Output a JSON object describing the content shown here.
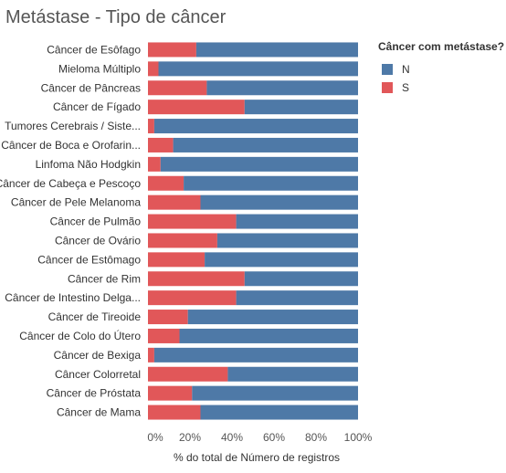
{
  "chart_data": {
    "type": "bar",
    "orientation": "horizontal",
    "stacked": "percent",
    "title": "Metástase - Tipo de câncer",
    "xlabel": "% do total de Número de registros",
    "ylabel": "",
    "xlim": [
      0,
      100
    ],
    "x_ticks": [
      "0%",
      "20%",
      "40%",
      "60%",
      "80%",
      "100%"
    ],
    "categories": [
      "Câncer de Esôfago",
      "Mieloma Múltiplo",
      "Câncer de Pâncreas",
      "Câncer de Fígado",
      "Tumores Cerebrais / Siste...",
      "Câncer de Boca e Orofarin...",
      "Linfoma Não Hodgkin",
      "Câncer de Cabeça e Pescoço",
      "Câncer de Pele Melanoma",
      "Câncer de Pulmão",
      "Câncer de Ovário",
      "Câncer de Estômago",
      "Câncer de Rim",
      "Câncer de Intestino Delga...",
      "Câncer de Tireoide",
      "Câncer de Colo do Útero",
      "Câncer de Bexiga",
      "Câncer Colorretal",
      "Câncer de Próstata",
      "Câncer de Mama"
    ],
    "series": [
      {
        "name": "S",
        "color": "#e15759",
        "values": [
          23,
          5,
          28,
          46,
          3,
          12,
          6,
          17,
          25,
          42,
          33,
          27,
          46,
          42,
          19,
          15,
          3,
          38,
          21,
          25
        ]
      },
      {
        "name": "N",
        "color": "#4e79a7",
        "values": [
          77,
          95,
          72,
          54,
          97,
          88,
          94,
          83,
          75,
          58,
          67,
          73,
          54,
          58,
          81,
          85,
          97,
          62,
          79,
          75
        ]
      }
    ],
    "legend": {
      "title": "Câncer com metástase?",
      "position": "top-right",
      "entries": [
        {
          "label": "N",
          "color": "#4e79a7"
        },
        {
          "label": "S",
          "color": "#e15759"
        }
      ]
    },
    "grid": false
  }
}
